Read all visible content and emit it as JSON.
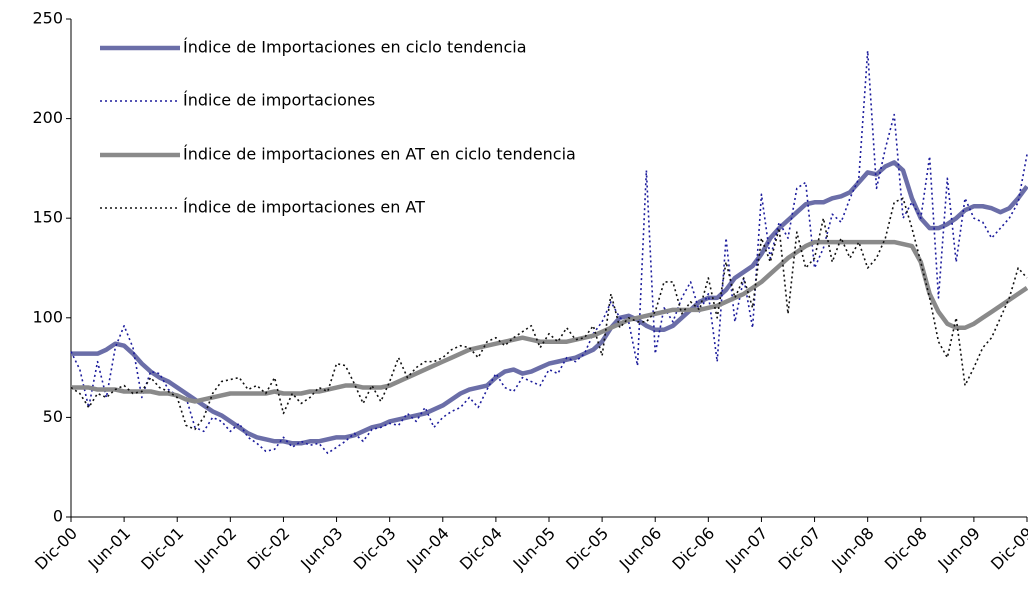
{
  "chart_data": {
    "type": "line",
    "categories": [
      "Dic-00",
      null,
      null,
      null,
      null,
      null,
      "Jun-01",
      null,
      null,
      null,
      null,
      null,
      "Dic-01",
      null,
      null,
      null,
      null,
      null,
      "Jun-02",
      null,
      null,
      null,
      null,
      null,
      "Dic-02",
      null,
      null,
      null,
      null,
      null,
      "Jun-03",
      null,
      null,
      null,
      null,
      null,
      "Dic-03",
      null,
      null,
      null,
      null,
      null,
      "Jun-04",
      null,
      null,
      null,
      null,
      null,
      "Dic-04",
      null,
      null,
      null,
      null,
      null,
      "Jun-05",
      null,
      null,
      null,
      null,
      null,
      "Dic-05",
      null,
      null,
      null,
      null,
      null,
      "Jun-06",
      null,
      null,
      null,
      null,
      null,
      "Dic-06",
      null,
      null,
      null,
      null,
      null,
      "Jun-07",
      null,
      null,
      null,
      null,
      null,
      "Dic-07",
      null,
      null,
      null,
      null,
      null,
      "Jun-08",
      null,
      null,
      null,
      null,
      null,
      "Dic-08",
      null,
      null,
      null,
      null,
      null,
      "Jun-09",
      null,
      null,
      null,
      null,
      null,
      "Dic-09"
    ],
    "series": [
      {
        "name": "Índice de Importaciones en ciclo tendencia",
        "color": "#6b6ea8",
        "style": "solid",
        "values": [
          82,
          82,
          82,
          82,
          84,
          87,
          86,
          82,
          77,
          73,
          70,
          68,
          65,
          62,
          59,
          56,
          53,
          51,
          48,
          45,
          42,
          40,
          39,
          38,
          38,
          37,
          37,
          38,
          38,
          39,
          40,
          40,
          41,
          43,
          45,
          46,
          48,
          49,
          50,
          51,
          52,
          54,
          56,
          59,
          62,
          64,
          65,
          66,
          70,
          73,
          74,
          72,
          73,
          75,
          77,
          78,
          79,
          80,
          82,
          84,
          88,
          95,
          100,
          101,
          99,
          96,
          94,
          94,
          96,
          100,
          104,
          108,
          110,
          110,
          114,
          120,
          123,
          126,
          132,
          140,
          145,
          149,
          153,
          157,
          158,
          158,
          160,
          161,
          163,
          168,
          173,
          172,
          176,
          178,
          174,
          160,
          150,
          145,
          145,
          147,
          150,
          154,
          156,
          156,
          155,
          153,
          155,
          160,
          166
        ]
      },
      {
        "name": "Índice de importaciones",
        "color": "#1c1c9c",
        "style": "dotted",
        "values": [
          83,
          74,
          55,
          78,
          60,
          85,
          96,
          85,
          60,
          73,
          72,
          64,
          61,
          60,
          45,
          43,
          50,
          48,
          43,
          47,
          40,
          37,
          33,
          34,
          40,
          35,
          38,
          36,
          37,
          32,
          35,
          38,
          42,
          38,
          44,
          45,
          47,
          46,
          52,
          48,
          55,
          45,
          50,
          53,
          55,
          60,
          55,
          64,
          72,
          65,
          63,
          70,
          68,
          66,
          74,
          72,
          80,
          78,
          82,
          92,
          98,
          108,
          100,
          98,
          76,
          174,
          82,
          105,
          98,
          110,
          118,
          103,
          112,
          78,
          140,
          98,
          120,
          95,
          162,
          130,
          148,
          140,
          165,
          168,
          125,
          135,
          152,
          148,
          160,
          170,
          234,
          165,
          185,
          202,
          150,
          158,
          150,
          181,
          110,
          170,
          128,
          160,
          150,
          148,
          140,
          145,
          150,
          158,
          182
        ]
      },
      {
        "name": "Índice de importaciones en AT en ciclo tendencia",
        "color": "#8a8a8a",
        "style": "solid",
        "values": [
          65,
          65,
          65,
          64,
          64,
          64,
          63,
          63,
          63,
          63,
          62,
          62,
          61,
          59,
          58,
          59,
          60,
          61,
          62,
          62,
          62,
          62,
          62,
          63,
          62,
          62,
          62,
          63,
          63,
          64,
          65,
          66,
          66,
          65,
          65,
          65,
          66,
          68,
          70,
          72,
          74,
          76,
          78,
          80,
          82,
          84,
          85,
          86,
          87,
          88,
          89,
          90,
          89,
          88,
          88,
          88,
          88,
          89,
          90,
          91,
          93,
          95,
          97,
          99,
          100,
          101,
          102,
          103,
          104,
          104,
          104,
          104,
          105,
          106,
          108,
          110,
          112,
          115,
          118,
          122,
          126,
          130,
          133,
          136,
          138,
          138,
          138,
          138,
          138,
          138,
          138,
          138,
          138,
          138,
          137,
          136,
          128,
          112,
          103,
          97,
          95,
          95,
          97,
          100,
          103,
          106,
          109,
          112,
          115
        ]
      },
      {
        "name": "Índice de importaciones en AT",
        "color": "#111111",
        "style": "dotted",
        "values": [
          65,
          62,
          55,
          62,
          60,
          64,
          66,
          62,
          63,
          70,
          65,
          63,
          60,
          46,
          44,
          50,
          62,
          68,
          69,
          70,
          64,
          66,
          62,
          70,
          52,
          62,
          57,
          60,
          65,
          63,
          77,
          76,
          67,
          57,
          66,
          58,
          68,
          80,
          70,
          75,
          78,
          78,
          80,
          84,
          86,
          85,
          80,
          88,
          90,
          86,
          90,
          93,
          96,
          85,
          92,
          88,
          95,
          89,
          90,
          96,
          81,
          112,
          95,
          100,
          98,
          98,
          103,
          118,
          118,
          102,
          108,
          104,
          120,
          100,
          128,
          110,
          120,
          105,
          140,
          128,
          145,
          102,
          143,
          125,
          130,
          150,
          128,
          140,
          130,
          138,
          125,
          130,
          140,
          158,
          160,
          145,
          128,
          110,
          88,
          80,
          100,
          66,
          75,
          85,
          90,
          100,
          110,
          125,
          120
        ]
      }
    ],
    "ylim": [
      0,
      250
    ],
    "yticks": [
      0,
      50,
      100,
      150,
      200,
      250
    ],
    "grid": false,
    "legend": "top-left"
  }
}
